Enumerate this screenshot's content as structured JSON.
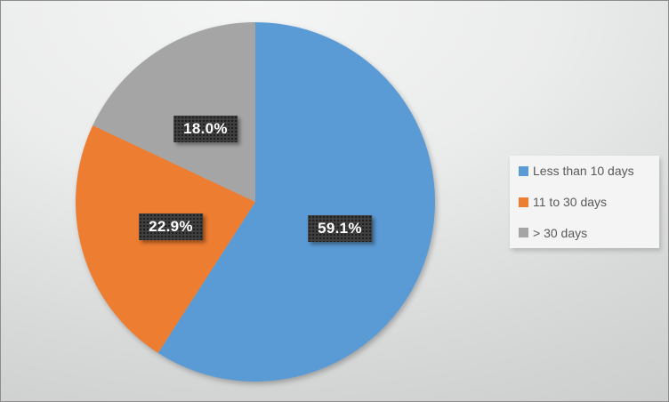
{
  "chart_data": {
    "type": "pie",
    "title": "",
    "categories": [
      "Less than 10 days",
      "11 to 30 days",
      "> 30 days"
    ],
    "values": [
      59.1,
      22.9,
      18.0
    ],
    "labels": [
      "59.1%",
      "22.9%",
      "18.0%"
    ],
    "colors": [
      "#5B9BD5",
      "#ED7D31",
      "#A5A5A5"
    ],
    "start_angle_deg": 0,
    "direction": "clockwise",
    "legend_position": "right",
    "data_label_style": {
      "background": "#3F3F3F",
      "text_color": "#FFFFFF"
    }
  },
  "legend": {
    "items": [
      {
        "label": "Less than 10 days",
        "color": "#5B9BD5"
      },
      {
        "label": "11 to 30 days",
        "color": "#ED7D31"
      },
      {
        "label": "> 30 days",
        "color": "#A5A5A5"
      }
    ]
  }
}
